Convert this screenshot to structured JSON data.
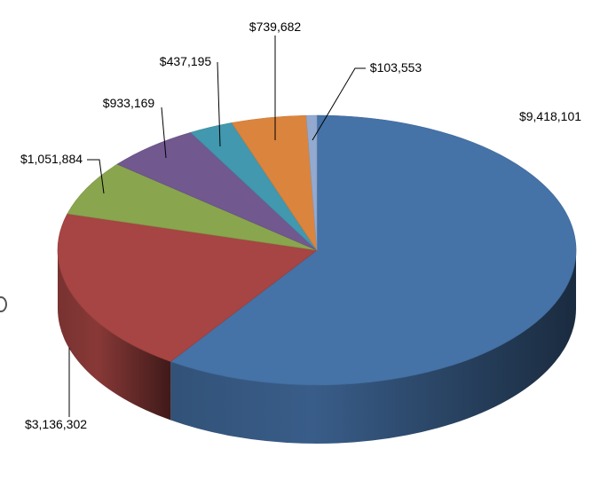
{
  "chart_data": {
    "type": "pie",
    "style": "3d",
    "title": "",
    "slices": [
      {
        "label": "$9,418,101",
        "value": 9418101,
        "color": "#4572A7"
      },
      {
        "label": "$3,136,302",
        "value": 3136302,
        "color": "#A64543"
      },
      {
        "label": "$1,051,884",
        "value": 1051884,
        "color": "#89A54E"
      },
      {
        "label": "$933,169",
        "value": 933169,
        "color": "#71588F"
      },
      {
        "label": "$437,195",
        "value": 437195,
        "color": "#4198AF"
      },
      {
        "label": "$739,682",
        "value": 739682,
        "color": "#DB843D"
      },
      {
        "label": "$103,553",
        "value": 103553,
        "color": "#93A9CF"
      }
    ],
    "start": "12 o'clock",
    "direction": "clockwise",
    "legend": "none"
  }
}
